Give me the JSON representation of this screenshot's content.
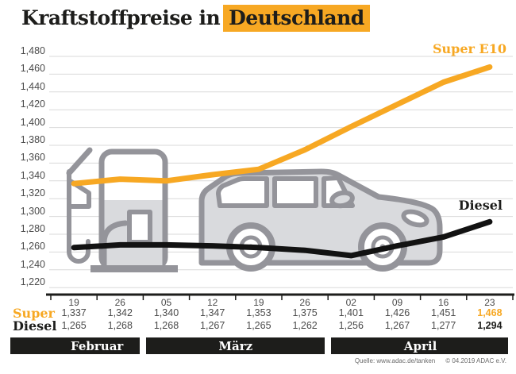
{
  "title": {
    "prefix": "Kraftstoffpreise in",
    "highlight": "Deutschland"
  },
  "source": {
    "attribution": "Quelle: www.adac.de/tanken",
    "copyright": "© 04.2019  ADAC e.V."
  },
  "colors": {
    "accent": "#F7A823",
    "ink": "#1D1D1B",
    "label_gray": "#4B4B4B",
    "grid_gray": "#D9D9D9",
    "illustration_outline": "#94949A",
    "illustration_fill": "#D9DADD",
    "source_gray": "#6B6B6B",
    "band_text": "#FFFFFF"
  },
  "chart_data": {
    "type": "line",
    "title": "Kraftstoffpreise in Deutschland",
    "xlabel": "",
    "ylabel": "",
    "grid": true,
    "legend_position": "end-of-line labels",
    "ylim": [
      1.22,
      1.48
    ],
    "y_step": 0.02,
    "y_tick_labels": [
      "1,480",
      "1,460",
      "1,440",
      "1,420",
      "1,400",
      "1,380",
      "1,360",
      "1,340",
      "1,320",
      "1,300",
      "1,280",
      "1,260",
      "1,240",
      "1,220"
    ],
    "x_tick_labels": [
      "19",
      "26",
      "05",
      "12",
      "19",
      "26",
      "02",
      "09",
      "16",
      "23"
    ],
    "month_groups": [
      {
        "label": "Februar",
        "cols": 2
      },
      {
        "label": "März",
        "cols": 4
      },
      {
        "label": "April",
        "cols": 4
      }
    ],
    "series": [
      {
        "name": "Super E10",
        "short_label": "Super",
        "color": "#F7A823",
        "values": [
          1.337,
          1.342,
          1.34,
          1.347,
          1.353,
          1.375,
          1.401,
          1.426,
          1.451,
          1.468
        ]
      },
      {
        "name": "Diesel",
        "short_label": "Diesel",
        "color": "#121212",
        "values": [
          1.265,
          1.268,
          1.268,
          1.267,
          1.265,
          1.262,
          1.256,
          1.267,
          1.277,
          1.294
        ]
      }
    ]
  }
}
